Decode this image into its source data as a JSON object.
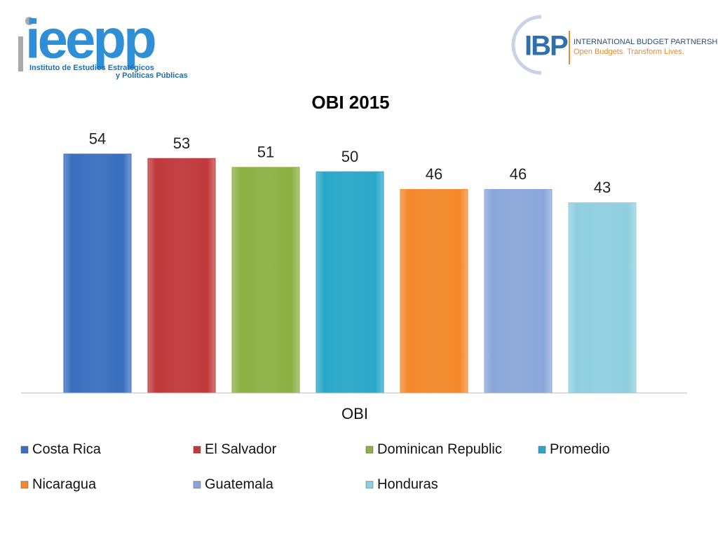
{
  "logos": {
    "left_name": "ieepp",
    "left_line1": "Instituto de Estudios Estratégicos",
    "left_line2": "y Políticas Públicas",
    "right_name": "IBP",
    "right_line1": "INTERNATIONAL BUDGET PARTNERSHIP",
    "right_line2": "Open Budgets. Transform Lives."
  },
  "chart_data": {
    "type": "bar",
    "title": "OBI 2015",
    "categories": [
      "OBI"
    ],
    "series": [
      {
        "name": "Costa Rica",
        "color": "#3a6fbf",
        "values": [
          54
        ]
      },
      {
        "name": "El Salvador",
        "color": "#c0393b",
        "values": [
          53
        ]
      },
      {
        "name": "Dominican Republic",
        "color": "#8cb043",
        "values": [
          51
        ]
      },
      {
        "name": "Promedio",
        "color": "#2aa7c8",
        "values": [
          50
        ]
      },
      {
        "name": "Nicaragua",
        "color": "#f4882a",
        "values": [
          46
        ]
      },
      {
        "name": "Guatemala",
        "color": "#8aa6d9",
        "values": [
          46
        ]
      },
      {
        "name": "Honduras",
        "color": "#8fcfe0",
        "values": [
          43
        ]
      }
    ],
    "ylim": [
      0,
      60
    ],
    "legend": "bottom"
  }
}
